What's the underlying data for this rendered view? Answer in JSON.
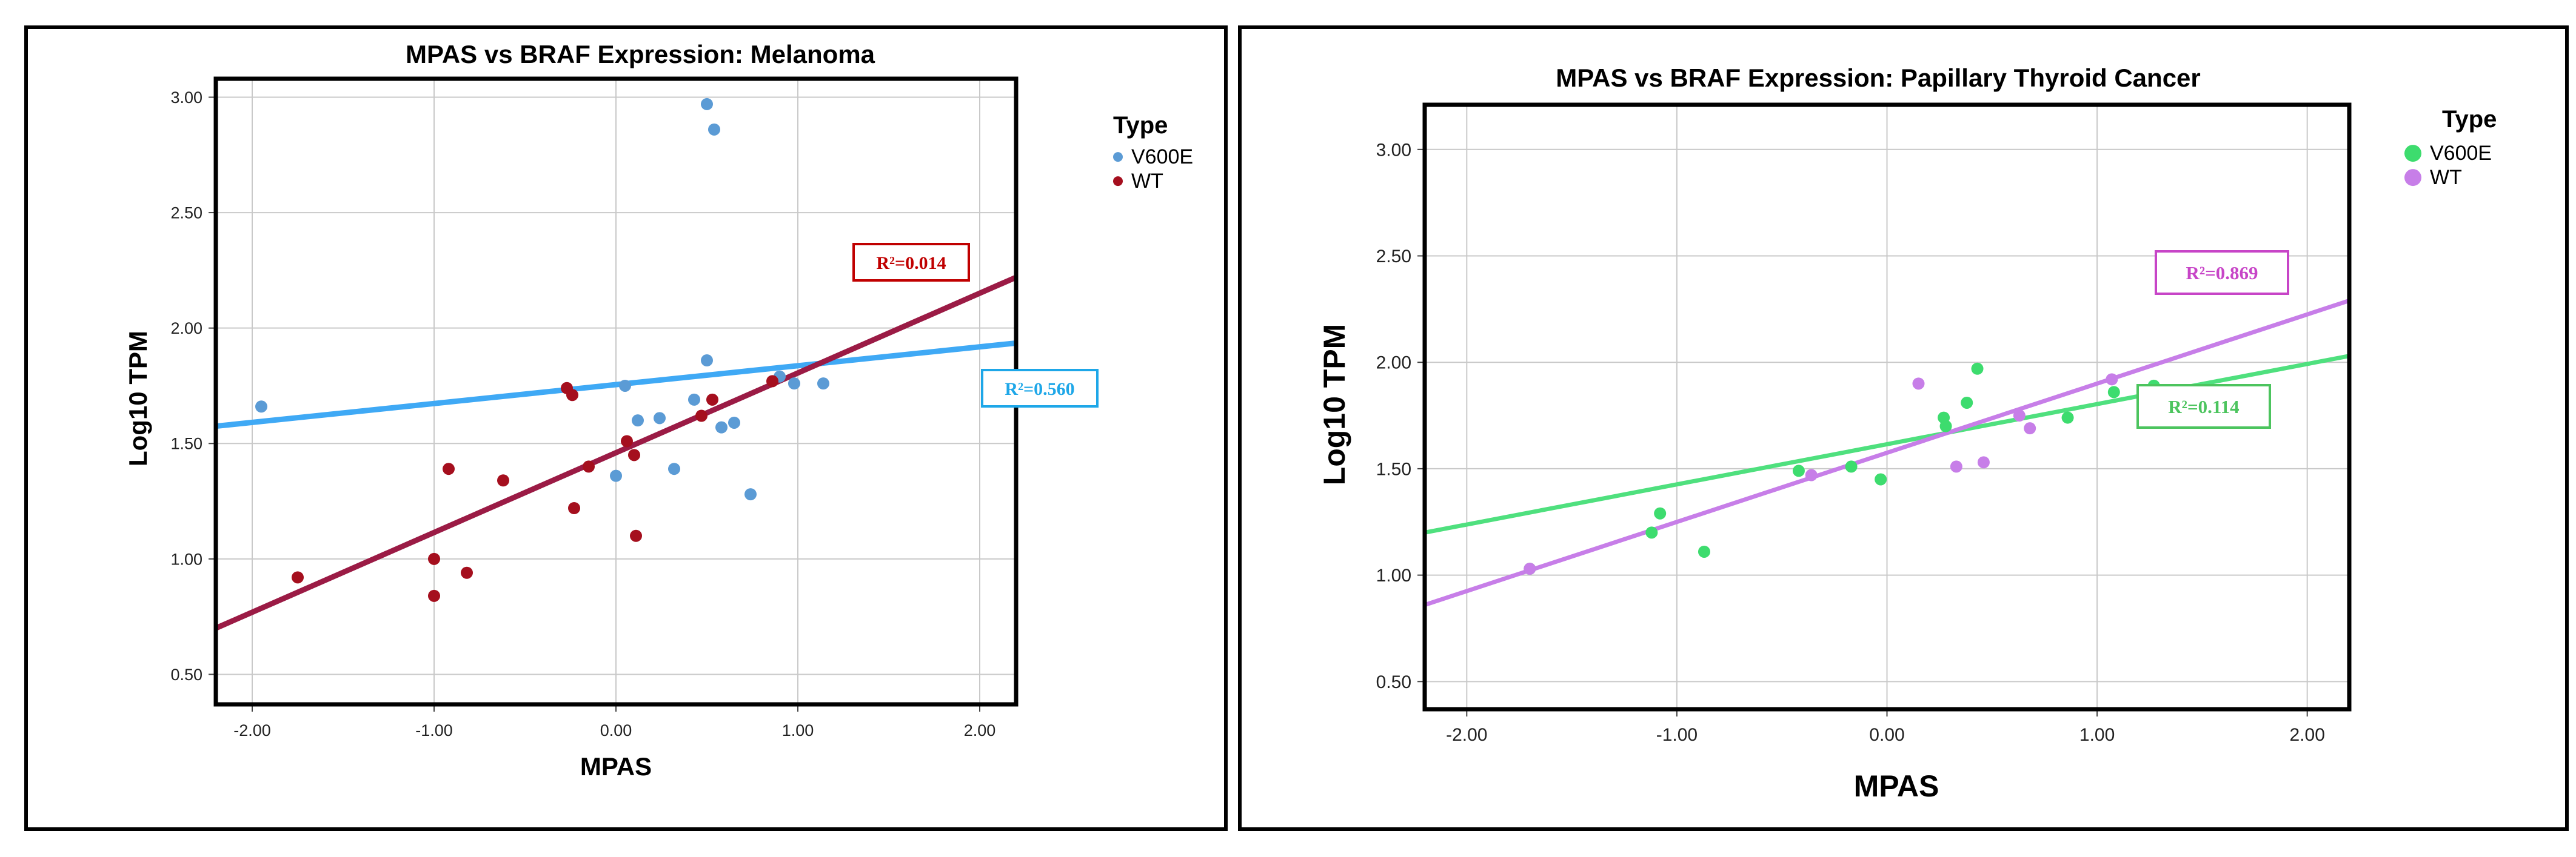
{
  "chart_data": [
    {
      "type": "scatter",
      "title": "MPAS vs BRAF Expression: Melanoma",
      "xlabel": "MPAS",
      "ylabel": "Log10 TPM",
      "xlim": [
        -2.2,
        2.2
      ],
      "ylim": [
        0.37,
        3.08
      ],
      "xticks": [
        -2.0,
        -1.0,
        0.0,
        1.0,
        2.0
      ],
      "yticks": [
        0.5,
        1.0,
        1.5,
        2.0,
        2.5,
        3.0
      ],
      "xtick_labels": [
        "-2.00",
        "-1.00",
        "0.00",
        "1.00",
        "2.00"
      ],
      "ytick_labels": [
        "0.50",
        "1.00",
        "1.50",
        "2.00",
        "2.50",
        "3.00"
      ],
      "legend_title": "Type",
      "series": [
        {
          "name": "V600E",
          "color": "#5b9bd5",
          "line_color": "#3fa9f5",
          "points": [
            [
              -1.95,
              1.66
            ],
            [
              0.05,
              1.75
            ],
            [
              0.0,
              1.36
            ],
            [
              0.12,
              1.6
            ],
            [
              0.24,
              1.61
            ],
            [
              0.32,
              1.39
            ],
            [
              0.43,
              1.69
            ],
            [
              0.5,
              1.86
            ],
            [
              0.58,
              1.57
            ],
            [
              0.65,
              1.59
            ],
            [
              0.74,
              1.28
            ],
            [
              0.9,
              1.79
            ],
            [
              0.98,
              1.76
            ],
            [
              1.14,
              1.76
            ],
            [
              0.5,
              2.97
            ],
            [
              0.54,
              2.86
            ]
          ],
          "fit": {
            "x": [
              -2.2,
              2.2
            ],
            "y": [
              1.575,
              1.935
            ]
          },
          "r2_label": "R²=0.560",
          "r2_color": "#1ea7e8"
        },
        {
          "name": "WT",
          "color": "#a50f1e",
          "line_color": "#9b1b45",
          "points": [
            [
              -1.75,
              0.92
            ],
            [
              -1.0,
              1.0
            ],
            [
              -1.0,
              0.84
            ],
            [
              -0.92,
              1.39
            ],
            [
              -0.82,
              0.94
            ],
            [
              -0.62,
              1.34
            ],
            [
              -0.27,
              1.74
            ],
            [
              -0.24,
              1.71
            ],
            [
              -0.23,
              1.22
            ],
            [
              -0.15,
              1.4
            ],
            [
              0.06,
              1.51
            ],
            [
              0.1,
              1.45
            ],
            [
              0.11,
              1.1
            ],
            [
              0.47,
              1.62
            ],
            [
              0.53,
              1.69
            ],
            [
              0.86,
              1.77
            ]
          ],
          "fit": {
            "x": [
              -2.2,
              2.2
            ],
            "y": [
              0.7,
              2.22
            ]
          },
          "r2_label": "R²=0.014",
          "r2_color": "#c00000"
        }
      ]
    },
    {
      "type": "scatter",
      "title": "MPAS vs BRAF Expression: Papillary Thyroid Cancer",
      "xlabel": "MPAS",
      "ylabel": "Log10 TPM",
      "xlim": [
        -2.2,
        2.2
      ],
      "ylim": [
        0.37,
        3.21
      ],
      "xticks": [
        -2.0,
        -1.0,
        0.0,
        1.0,
        2.0
      ],
      "yticks": [
        0.5,
        1.0,
        1.5,
        2.0,
        2.5,
        3.0
      ],
      "xtick_labels": [
        "-2.00",
        "-1.00",
        "0.00",
        "1.00",
        "2.00"
      ],
      "ytick_labels": [
        "0.50",
        "1.00",
        "1.50",
        "2.00",
        "2.50",
        "3.00"
      ],
      "legend_title": "Type",
      "series": [
        {
          "name": "V600E",
          "color": "#3ddc6e",
          "line_color": "#4fe07e",
          "points": [
            [
              -1.7,
              1.03
            ],
            [
              -1.12,
              1.2
            ],
            [
              -1.08,
              1.29
            ],
            [
              -0.87,
              1.11
            ],
            [
              -0.42,
              1.49
            ],
            [
              -0.17,
              1.51
            ],
            [
              -0.03,
              1.45
            ],
            [
              0.27,
              1.74
            ],
            [
              0.28,
              1.7
            ],
            [
              0.38,
              1.81
            ],
            [
              0.43,
              1.97
            ],
            [
              0.86,
              1.74
            ],
            [
              1.08,
              1.86
            ],
            [
              1.27,
              1.89
            ]
          ],
          "fit": {
            "x": [
              -2.2,
              2.2
            ],
            "y": [
              1.2,
              2.03
            ]
          },
          "r2_label": "R²=0.114",
          "r2_color": "#4cc45e"
        },
        {
          "name": "WT",
          "color": "#c77ee8",
          "line_color": "#c77ee8",
          "points": [
            [
              -1.7,
              1.03
            ],
            [
              -0.36,
              1.47
            ],
            [
              0.15,
              1.9
            ],
            [
              0.33,
              1.51
            ],
            [
              0.46,
              1.53
            ],
            [
              0.63,
              1.75
            ],
            [
              0.68,
              1.69
            ],
            [
              1.07,
              1.92
            ]
          ],
          "fit": {
            "x": [
              -2.2,
              2.2
            ],
            "y": [
              0.86,
              2.29
            ]
          },
          "r2_label": "R²=0.869",
          "r2_color": "#c745c7"
        }
      ]
    }
  ]
}
